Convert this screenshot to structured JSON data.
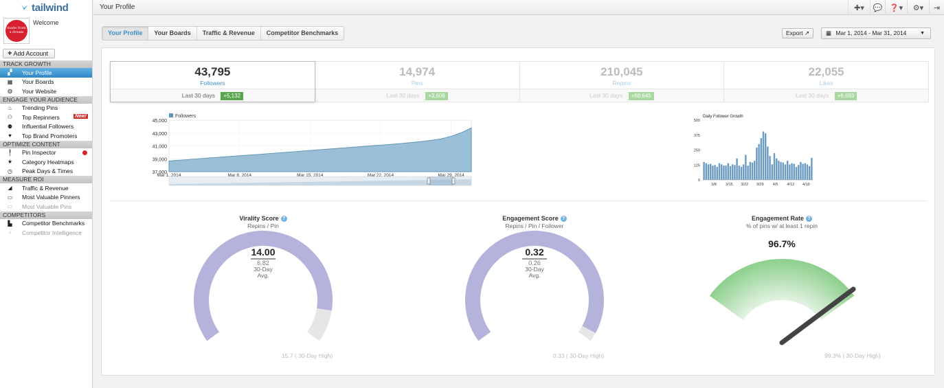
{
  "app": {
    "name": "tailwind"
  },
  "account": {
    "welcome": "Welcome",
    "avatar_text": "made from a dream",
    "add_account": "Add Account"
  },
  "nav": {
    "sections": [
      {
        "title": "TRACK GROWTH",
        "items": [
          {
            "label": "Your Profile",
            "icon": "profile-stats-icon",
            "active": true
          },
          {
            "label": "Your Boards",
            "icon": "boards-grid-icon"
          },
          {
            "label": "Your Website",
            "icon": "globe-icon"
          }
        ]
      },
      {
        "title": "ENGAGE YOUR AUDIENCE",
        "items": [
          {
            "label": "Trending Pins",
            "icon": "flame-icon"
          },
          {
            "label": "Top Repinners",
            "icon": "user-plus-icon",
            "badge": "New!"
          },
          {
            "label": "Influential Followers",
            "icon": "users-icon"
          },
          {
            "label": "Top Brand Promoters",
            "icon": "heart-icon"
          }
        ]
      },
      {
        "title": "OPTIMIZE CONTENT",
        "items": [
          {
            "label": "Pin Inspector",
            "icon": "pin-icon",
            "alert": true
          },
          {
            "label": "Category Heatmaps",
            "icon": "star-icon"
          },
          {
            "label": "Peak Days & Times",
            "icon": "clock-icon"
          }
        ]
      },
      {
        "title": "MEASURE ROI",
        "items": [
          {
            "label": "Traffic & Revenue",
            "icon": "area-chart-icon"
          },
          {
            "label": "Most Valuable Pinners",
            "icon": "money-icon"
          },
          {
            "label": "Most Valuable Pins",
            "icon": "money-stack-icon",
            "dim": true
          }
        ]
      },
      {
        "title": "COMPETITORS",
        "items": [
          {
            "label": "Competitor Benchmarks",
            "icon": "bar-chart-icon"
          },
          {
            "label": "Competitor Intelligence",
            "icon": "lightbulb-icon",
            "dim": true
          }
        ]
      }
    ]
  },
  "header": {
    "title": "Your Profile",
    "icons": [
      "plus-icon",
      "chat-icon",
      "help-icon",
      "gear-icon",
      "logout-icon"
    ]
  },
  "tabs": [
    "Your Profile",
    "Your Boards",
    "Traffic & Revenue",
    "Competitor Benchmarks"
  ],
  "toolbar": {
    "export": "Export",
    "date_range": "Mar 1, 2014 - Mar 31, 2014"
  },
  "stats": [
    {
      "value": "43,795",
      "label": "Followers",
      "period": "Last 30 days",
      "delta": "+5,132",
      "active": true
    },
    {
      "value": "14,974",
      "label": "Pins",
      "period": "Last 30 days",
      "delta": "+3,609"
    },
    {
      "value": "210,045",
      "label": "Repins",
      "period": "Last 30 days",
      "delta": "+68,645"
    },
    {
      "value": "22,055",
      "label": "Likes",
      "period": "Last 30 days",
      "delta": "+6,693"
    }
  ],
  "chart_data": [
    {
      "type": "area",
      "legend": "Followers",
      "x": [
        "Mar 1",
        "Mar 2",
        "Mar 3",
        "Mar 4",
        "Mar 5",
        "Mar 6",
        "Mar 7",
        "Mar 8",
        "Mar 9",
        "Mar 10",
        "Mar 11",
        "Mar 12",
        "Mar 13",
        "Mar 14",
        "Mar 15",
        "Mar 16",
        "Mar 17",
        "Mar 18",
        "Mar 19",
        "Mar 20",
        "Mar 21",
        "Mar 22",
        "Mar 23",
        "Mar 24",
        "Mar 25",
        "Mar 26",
        "Mar 27",
        "Mar 28",
        "Mar 29",
        "Mar 30",
        "Mar 31"
      ],
      "values": [
        38663,
        38780,
        38900,
        39020,
        39130,
        39240,
        39360,
        39480,
        39590,
        39700,
        39820,
        39940,
        40060,
        40180,
        40290,
        40410,
        40530,
        40650,
        40770,
        40890,
        41010,
        41120,
        41240,
        41380,
        41520,
        41680,
        41870,
        42100,
        42500,
        43050,
        43795
      ],
      "ylim": [
        37000,
        45000
      ],
      "yticks": [
        "37,000",
        "39,000",
        "41,000",
        "43,000",
        "45,000"
      ],
      "xticks": [
        "Mar 1, 2014",
        "Mar 8, 2014",
        "Mar 15, 2014",
        "Mar 22, 2014",
        "Mar 29, 2014"
      ]
    },
    {
      "type": "bar",
      "title": "Daily Follower Growth",
      "values": [
        150,
        140,
        130,
        135,
        120,
        125,
        110,
        140,
        130,
        120,
        120,
        140,
        115,
        130,
        125,
        180,
        120,
        110,
        130,
        210,
        120,
        150,
        145,
        160,
        270,
        300,
        350,
        405,
        390,
        280,
        200,
        130,
        225,
        180,
        160,
        150,
        145,
        130,
        160,
        130,
        140,
        135,
        110,
        125,
        150,
        135,
        140,
        130,
        115,
        185
      ],
      "ylim": [
        0,
        500
      ],
      "yticks": [
        "0",
        "125",
        "250",
        "375",
        "500"
      ],
      "xticks": [
        "3/8",
        "3/15",
        "3/22",
        "3/29",
        "4/5",
        "4/12",
        "4/19"
      ]
    }
  ],
  "gauges": [
    {
      "title": "Virality Score",
      "subtitle": "Repins / Pin",
      "value": "14.00",
      "value_num": 14.0,
      "avg": "6.82",
      "avg_label": "30-Day",
      "avg_label2": "Avg.",
      "high": "15.7 ( 30-Day High)",
      "high_num": 15.7,
      "color": "#b3b3db"
    },
    {
      "title": "Engagement Score",
      "subtitle": "Repins / Pin / Follower",
      "value": "0.32",
      "value_num": 0.32,
      "avg": "0.26",
      "avg_label": "30-Day",
      "avg_label2": "Avg.",
      "high": "0.33 ( 30-Day High)",
      "high_num": 0.33,
      "color": "#b3b3db"
    },
    {
      "title": "Engagement Rate",
      "subtitle": "% of pins w/ at least 1 repin",
      "value": "96.7%",
      "value_num": 96.7,
      "high": "99.3% ( 30-Day High)",
      "high_num": 99.3,
      "color": "#a8d8a8"
    }
  ]
}
